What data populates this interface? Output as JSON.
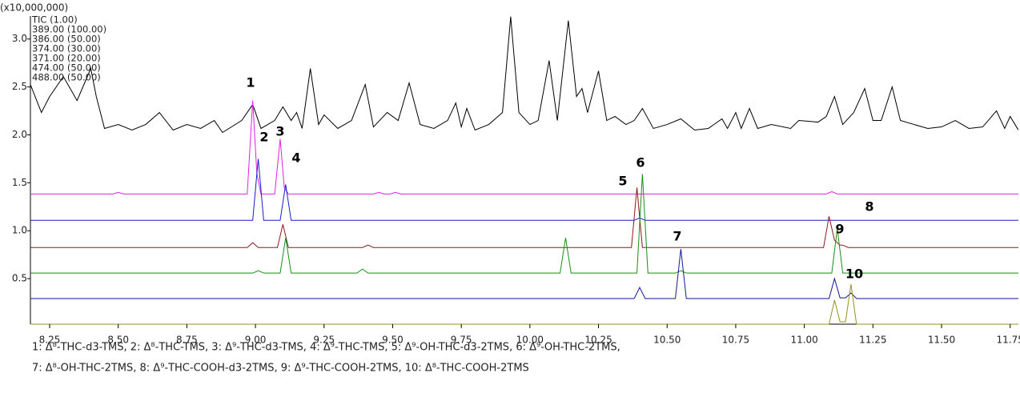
{
  "chart_data": {
    "type": "line",
    "y_multiplier": "(x10,000,000)",
    "xlim": [
      8.18,
      11.78
    ],
    "ylim": [
      0.025,
      3.24
    ],
    "xticks": [
      8.25,
      {
        "value": 8.5,
        "label": "8.50"
      },
      8.75,
      {
        "value": 9,
        "label": "9.00"
      },
      9.25,
      {
        "value": 9.5,
        "label": "9.50"
      },
      9.75,
      {
        "value": 10,
        "label": "10.00"
      },
      10.25,
      {
        "value": 10.5,
        "label": "10.50"
      },
      10.75,
      {
        "value": 11,
        "label": "11.00"
      },
      11.25,
      {
        "value": 11.5,
        "label": "11.50"
      },
      11.75
    ],
    "yticks": [
      0.5,
      {
        "value": 1,
        "label": "1.0"
      },
      1.5,
      {
        "value": 2,
        "label": "2.0"
      },
      2.5,
      {
        "value": 3,
        "label": "3.0"
      }
    ],
    "series": [
      {
        "name": "TIC (1.00)",
        "color": "#000000",
        "x": [
          8.18,
          8.22,
          8.25,
          8.3,
          8.35,
          8.4,
          8.42,
          8.45,
          8.5,
          8.55,
          8.6,
          8.65,
          8.7,
          8.75,
          8.8,
          8.85,
          8.88,
          8.95,
          8.99,
          9.02,
          9.07,
          9.1,
          9.13,
          9.15,
          9.17,
          9.2,
          9.23,
          9.25,
          9.3,
          9.35,
          9.4,
          9.43,
          9.48,
          9.52,
          9.56,
          9.6,
          9.65,
          9.7,
          9.73,
          9.75,
          9.77,
          9.8,
          9.85,
          9.9,
          9.93,
          9.96,
          10.0,
          10.03,
          10.07,
          10.1,
          10.14,
          10.17,
          10.19,
          10.21,
          10.25,
          10.28,
          10.31,
          10.35,
          10.38,
          10.41,
          10.45,
          10.5,
          10.55,
          10.6,
          10.65,
          10.7,
          10.72,
          10.75,
          10.77,
          10.8,
          10.83,
          10.88,
          10.95,
          10.98,
          11.05,
          11.08,
          11.11,
          11.14,
          11.18,
          11.22,
          11.25,
          11.28,
          11.32,
          11.35,
          11.4,
          11.45,
          11.5,
          11.55,
          11.6,
          11.65,
          11.7,
          11.73,
          11.75,
          11.78
        ],
        "values": [
          2.525,
          2.233,
          2.4,
          2.608,
          2.358,
          2.692,
          2.4,
          2.067,
          2.108,
          2.05,
          2.108,
          2.233,
          2.05,
          2.108,
          2.067,
          2.15,
          2.025,
          2.15,
          2.317,
          2.067,
          2.15,
          2.292,
          2.15,
          2.233,
          2.067,
          2.692,
          2.108,
          2.208,
          2.067,
          2.15,
          2.525,
          2.083,
          2.233,
          2.15,
          2.542,
          2.108,
          2.067,
          2.15,
          2.333,
          2.083,
          2.275,
          2.05,
          2.108,
          2.233,
          3.233,
          2.233,
          2.108,
          2.15,
          2.775,
          2.15,
          3.192,
          2.4,
          2.483,
          2.233,
          2.667,
          2.15,
          2.192,
          2.108,
          2.15,
          2.275,
          2.067,
          2.108,
          2.167,
          2.05,
          2.067,
          2.167,
          2.067,
          2.233,
          2.067,
          2.275,
          2.067,
          2.108,
          2.067,
          2.15,
          2.133,
          2.192,
          2.4,
          2.108,
          2.233,
          2.483,
          2.15,
          2.15,
          2.5,
          2.15,
          2.108,
          2.067,
          2.083,
          2.15,
          2.067,
          2.083,
          2.25,
          2.067,
          2.192,
          2.05
        ]
      },
      {
        "name": "389.00 (100.00)",
        "color": "#e020e0",
        "x": [
          8.18,
          8.48,
          8.5,
          8.52,
          8.97,
          8.99,
          9.005,
          9.02,
          9.07,
          9.09,
          9.105,
          9.12,
          9.43,
          9.45,
          9.47,
          9.49,
          9.51,
          9.53,
          11.08,
          11.1,
          11.12,
          11.78
        ],
        "values": [
          1.383,
          1.383,
          1.4,
          1.383,
          1.383,
          2.358,
          1.6,
          1.383,
          1.383,
          1.958,
          1.45,
          1.383,
          1.383,
          1.4,
          1.383,
          1.383,
          1.4,
          1.383,
          1.383,
          1.408,
          1.383,
          1.383
        ]
      },
      {
        "name": "386.00 (50.00)",
        "color": "#1a1ad0",
        "x": [
          8.18,
          8.99,
          9.01,
          9.03,
          9.09,
          9.11,
          9.13,
          10.38,
          10.4,
          10.42,
          11.78
        ],
        "values": [
          1.108,
          1.108,
          1.75,
          1.108,
          1.108,
          1.483,
          1.108,
          1.108,
          1.133,
          1.108,
          1.108
        ]
      },
      {
        "name": "374.00 (30.00)",
        "color": "#8b1a1a",
        "x": [
          8.18,
          8.97,
          8.99,
          9.01,
          9.08,
          9.1,
          9.12,
          9.39,
          9.41,
          9.43,
          10.37,
          10.39,
          10.41,
          11.07,
          11.09,
          11.11,
          11.13,
          11.14,
          11.16,
          11.78
        ],
        "values": [
          0.825,
          0.825,
          0.875,
          0.825,
          0.825,
          1.067,
          0.825,
          0.825,
          0.85,
          0.825,
          0.825,
          1.45,
          0.825,
          0.825,
          1.15,
          0.9,
          0.85,
          0.85,
          0.825,
          0.825
        ]
      },
      {
        "name": "371.00 (20.00)",
        "color": "#1a8c1a",
        "x": [
          8.18,
          8.99,
          9.01,
          9.03,
          9.09,
          9.11,
          9.13,
          9.37,
          9.39,
          9.41,
          10.11,
          10.13,
          10.15,
          10.39,
          10.41,
          10.43,
          10.53,
          10.55,
          10.57,
          11.1,
          11.12,
          11.14,
          11.78
        ],
        "values": [
          0.558,
          0.558,
          0.583,
          0.558,
          0.558,
          0.925,
          0.558,
          0.558,
          0.6,
          0.558,
          0.558,
          0.925,
          0.558,
          0.558,
          1.592,
          0.558,
          0.558,
          0.583,
          0.558,
          0.558,
          1.025,
          0.558,
          0.558
        ]
      },
      {
        "name": "474.00 (50.00)",
        "color": "#101a8c",
        "x": [
          8.18,
          10.38,
          10.4,
          10.42,
          10.53,
          10.55,
          10.57,
          11.09,
          11.11,
          11.13,
          11.15,
          11.17,
          11.19,
          11.78
        ],
        "values": [
          0.292,
          0.292,
          0.408,
          0.292,
          0.292,
          0.808,
          0.292,
          0.292,
          0.5,
          0.3,
          0.3,
          0.35,
          0.292,
          0.292
        ]
      },
      {
        "name": "488.00 (50.00)",
        "color": "#9a9020",
        "x": [
          8.18,
          11.09,
          11.11,
          11.13,
          11.15,
          11.17,
          11.19,
          11.78
        ],
        "values": [
          0.025,
          0.025,
          0.275,
          0.05,
          0.05,
          0.442,
          0.025,
          0.025
        ]
      }
    ],
    "peak_labels": [
      "1",
      "2",
      "3",
      "4",
      "5",
      "6",
      "7",
      "8",
      "9",
      "10"
    ],
    "caption": [
      "1: Δ⁸-THC-d3-TMS, 2: Δ⁸-THC-TMS, 3: Δ⁹-THC-d3-TMS, 4: Δ⁹-THC-TMS, 5: Δ⁹-OH-THC-d3-2TMS, 6: Δ⁹-OH-THC-2TMS,",
      "7: Δ⁸-OH-THC-2TMS, 8: Δ⁹-THC-COOH-d3-2TMS, 9: Δ⁹-THC-COOH-2TMS, 10: Δ⁸-THC-COOH-2TMS"
    ]
  }
}
